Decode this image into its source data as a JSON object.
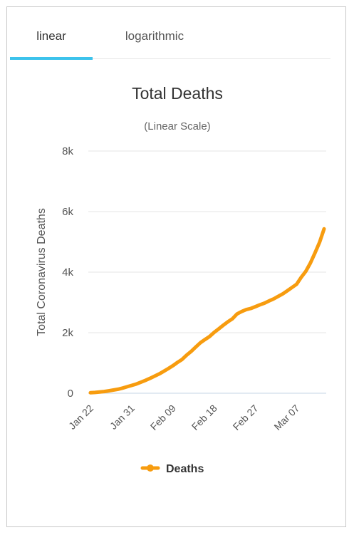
{
  "tabs": [
    {
      "label": "linear",
      "active": true
    },
    {
      "label": "logarithmic",
      "active": false
    }
  ],
  "accent_color": "#3cc3ec",
  "chart_data": {
    "type": "line",
    "title": "Total Deaths",
    "subtitle": "(Linear Scale)",
    "xlabel": "",
    "ylabel": "Total Coronavirus Deaths",
    "ylim": [
      0,
      8000
    ],
    "yticks": [
      0,
      2000,
      4000,
      6000,
      8000
    ],
    "ytick_labels": [
      "0",
      "2k",
      "4k",
      "6k",
      "8k"
    ],
    "xtick_labels": [
      "Jan 22",
      "Jan 31",
      "Feb 09",
      "Feb 18",
      "Feb 27",
      "Mar 07"
    ],
    "grid": true,
    "legend": "bottom-center",
    "series": [
      {
        "name": "Deaths",
        "color": "#f79c0f",
        "x": [
          "Jan 22",
          "Jan 23",
          "Jan 24",
          "Jan 25",
          "Jan 26",
          "Jan 27",
          "Jan 28",
          "Jan 29",
          "Jan 30",
          "Jan 31",
          "Feb 01",
          "Feb 02",
          "Feb 03",
          "Feb 04",
          "Feb 05",
          "Feb 06",
          "Feb 07",
          "Feb 08",
          "Feb 09",
          "Feb 10",
          "Feb 11",
          "Feb 12",
          "Feb 13",
          "Feb 14",
          "Feb 15",
          "Feb 16",
          "Feb 17",
          "Feb 18",
          "Feb 19",
          "Feb 20",
          "Feb 21",
          "Feb 22",
          "Feb 23",
          "Feb 24",
          "Feb 25",
          "Feb 26",
          "Feb 27",
          "Feb 28",
          "Feb 29",
          "Mar 01",
          "Mar 02",
          "Mar 03",
          "Mar 04",
          "Mar 05",
          "Mar 06",
          "Mar 07",
          "Mar 08",
          "Mar 09",
          "Mar 10",
          "Mar 11",
          "Mar 12",
          "Mar 13"
        ],
        "values": [
          17,
          25,
          41,
          56,
          80,
          106,
          132,
          170,
          213,
          259,
          304,
          362,
          426,
          492,
          565,
          638,
          724,
          813,
          910,
          1018,
          1115,
          1261,
          1383,
          1526,
          1669,
          1775,
          1873,
          2009,
          2126,
          2247,
          2360,
          2460,
          2618,
          2699,
          2763,
          2800,
          2858,
          2923,
          2977,
          3050,
          3117,
          3202,
          3285,
          3387,
          3494,
          3599,
          3827,
          4025,
          4296,
          4628,
          4981,
          5428
        ]
      }
    ]
  }
}
